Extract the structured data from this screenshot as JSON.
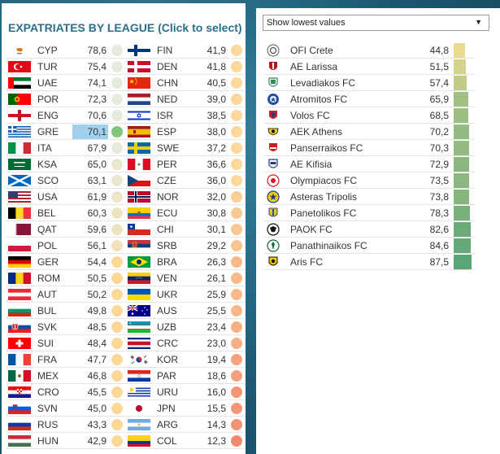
{
  "left_panel": {
    "title": "EXPATRIATES BY LEAGUE (Click to select)",
    "selected_code": "GRE",
    "column_a": [
      {
        "code": "CYP",
        "value": "78,6",
        "flag": "cyprus-flag"
      },
      {
        "code": "TUR",
        "value": "75,4",
        "flag": "turkey-flag"
      },
      {
        "code": "UAE",
        "value": "74,1",
        "flag": "uae-flag"
      },
      {
        "code": "POR",
        "value": "72,3",
        "flag": "portugal-flag"
      },
      {
        "code": "ENG",
        "value": "70,6",
        "flag": "england-flag"
      },
      {
        "code": "GRE",
        "value": "70,1",
        "flag": "greece-flag"
      },
      {
        "code": "ITA",
        "value": "67,9",
        "flag": "italy-flag"
      },
      {
        "code": "KSA",
        "value": "65,0",
        "flag": "saudi-arabia-flag"
      },
      {
        "code": "SCO",
        "value": "63,1",
        "flag": "scotland-flag"
      },
      {
        "code": "USA",
        "value": "61,9",
        "flag": "usa-flag"
      },
      {
        "code": "BEL",
        "value": "60,3",
        "flag": "belgium-flag"
      },
      {
        "code": "QAT",
        "value": "59,6",
        "flag": "qatar-flag"
      },
      {
        "code": "POL",
        "value": "56,1",
        "flag": "poland-flag"
      },
      {
        "code": "GER",
        "value": "54,4",
        "flag": "germany-flag"
      },
      {
        "code": "ROM",
        "value": "50,5",
        "flag": "romania-flag"
      },
      {
        "code": "AUT",
        "value": "50,2",
        "flag": "austria-flag"
      },
      {
        "code": "BUL",
        "value": "49,8",
        "flag": "bulgaria-flag"
      },
      {
        "code": "SVK",
        "value": "48,5",
        "flag": "slovakia-flag"
      },
      {
        "code": "SUI",
        "value": "48,4",
        "flag": "switzerland-flag"
      },
      {
        "code": "FRA",
        "value": "47,7",
        "flag": "france-flag"
      },
      {
        "code": "MEX",
        "value": "46,8",
        "flag": "mexico-flag"
      },
      {
        "code": "CRO",
        "value": "45,5",
        "flag": "croatia-flag"
      },
      {
        "code": "SVN",
        "value": "45,0",
        "flag": "slovenia-flag"
      },
      {
        "code": "RUS",
        "value": "43,3",
        "flag": "russia-flag"
      },
      {
        "code": "HUN",
        "value": "42,9",
        "flag": "hungary-flag"
      }
    ],
    "column_b": [
      {
        "code": "FIN",
        "value": "41,9",
        "flag": "finland-flag"
      },
      {
        "code": "DEN",
        "value": "41,8",
        "flag": "denmark-flag"
      },
      {
        "code": "CHN",
        "value": "40,5",
        "flag": "china-flag"
      },
      {
        "code": "NED",
        "value": "39,0",
        "flag": "netherlands-flag"
      },
      {
        "code": "ISR",
        "value": "38,5",
        "flag": "israel-flag"
      },
      {
        "code": "ESP",
        "value": "38,0",
        "flag": "spain-flag"
      },
      {
        "code": "SWE",
        "value": "37,2",
        "flag": "sweden-flag"
      },
      {
        "code": "PER",
        "value": "36,6",
        "flag": "peru-flag"
      },
      {
        "code": "CZE",
        "value": "36,0",
        "flag": "czechia-flag"
      },
      {
        "code": "NOR",
        "value": "32,0",
        "flag": "norway-flag"
      },
      {
        "code": "ECU",
        "value": "30,8",
        "flag": "ecuador-flag"
      },
      {
        "code": "CHI",
        "value": "30,1",
        "flag": "chile-flag"
      },
      {
        "code": "SRB",
        "value": "29,2",
        "flag": "serbia-flag"
      },
      {
        "code": "BRA",
        "value": "26,3",
        "flag": "brazil-flag"
      },
      {
        "code": "VEN",
        "value": "26,1",
        "flag": "venezuela-flag"
      },
      {
        "code": "UKR",
        "value": "25,9",
        "flag": "ukraine-flag"
      },
      {
        "code": "AUS",
        "value": "25,5",
        "flag": "australia-flag"
      },
      {
        "code": "UZB",
        "value": "23,4",
        "flag": "uzbekistan-flag"
      },
      {
        "code": "CRC",
        "value": "23,0",
        "flag": "costa-rica-flag"
      },
      {
        "code": "KOR",
        "value": "19,4",
        "flag": "south-korea-flag"
      },
      {
        "code": "PAR",
        "value": "18,6",
        "flag": "paraguay-flag"
      },
      {
        "code": "URU",
        "value": "16,0",
        "flag": "uruguay-flag"
      },
      {
        "code": "JPN",
        "value": "15,5",
        "flag": "japan-flag"
      },
      {
        "code": "ARG",
        "value": "14,3",
        "flag": "argentina-flag"
      },
      {
        "code": "COL",
        "value": "12,3",
        "flag": "colombia-flag"
      }
    ]
  },
  "right_panel": {
    "dropdown": {
      "selected": "Show lowest values",
      "icon": "caret-down-icon"
    },
    "clubs": [
      {
        "name": "OFI Crete",
        "value": "44,8",
        "crest": "ofi-crete-crest"
      },
      {
        "name": "AE Larissa",
        "value": "51,5",
        "crest": "ae-larissa-crest"
      },
      {
        "name": "Levadiakos FC",
        "value": "57,4",
        "crest": "levadiakos-crest"
      },
      {
        "name": "Atromitos FC",
        "value": "65,9",
        "crest": "atromitos-crest"
      },
      {
        "name": "Volos FC",
        "value": "68,5",
        "crest": "volos-crest"
      },
      {
        "name": "AEK Athens",
        "value": "70,2",
        "crest": "aek-athens-crest"
      },
      {
        "name": "Panserraikos FC",
        "value": "70,3",
        "crest": "panserraikos-crest"
      },
      {
        "name": "AE Kifisia",
        "value": "72,9",
        "crest": "ae-kifisia-crest"
      },
      {
        "name": "Olympiacos FC",
        "value": "73,5",
        "crest": "olympiacos-crest"
      },
      {
        "name": "Asteras Tripolis",
        "value": "73,8",
        "crest": "asteras-tripolis-crest"
      },
      {
        "name": "Panetolikos FC",
        "value": "78,3",
        "crest": "panetolikos-crest"
      },
      {
        "name": "PAOK FC",
        "value": "82,6",
        "crest": "paok-crest"
      },
      {
        "name": "Panathinaikos FC",
        "value": "84,6",
        "crest": "panathinaikos-crest"
      },
      {
        "name": "Aris FC",
        "value": "87,5",
        "crest": "aris-crest"
      }
    ]
  },
  "colors": {
    "title": "#2a6f8a",
    "selected_value_bg": "#9fd0f0",
    "selected_dot": "#7dc67a",
    "high_dot": "#e3ecdf",
    "mid_dot": "#fcd79a",
    "low_dot": "#f08a6f",
    "bar_low": "#eadb8f",
    "bar_high": "#5aa577"
  }
}
